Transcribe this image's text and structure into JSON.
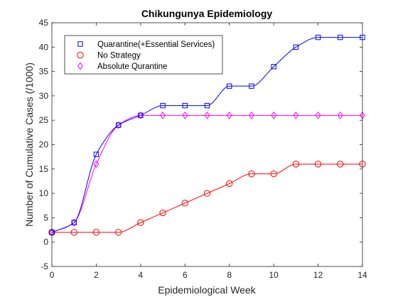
{
  "chart_data": {
    "type": "line",
    "title": "Chikungunya Epidemiology",
    "xlabel": "Epidemiological Week",
    "ylabel": "Number of Cumulative Cases (/1000)",
    "xlim": [
      0,
      14
    ],
    "ylim": [
      -5,
      45
    ],
    "xticks": [
      0,
      2,
      4,
      6,
      8,
      10,
      12,
      14
    ],
    "yticks": [
      -5,
      0,
      5,
      10,
      15,
      20,
      25,
      30,
      35,
      40,
      45
    ],
    "grid": false,
    "legend_position": "top-left",
    "x": [
      0,
      1,
      2,
      3,
      4,
      5,
      6,
      7,
      8,
      9,
      10,
      11,
      12,
      13,
      14
    ],
    "series": [
      {
        "name": "Quarantine(+Essential Services)",
        "marker": "square",
        "color": "#0000ff",
        "values": [
          2,
          4,
          18,
          24,
          26,
          28,
          28,
          28,
          32,
          32,
          36,
          40,
          42,
          42,
          42
        ]
      },
      {
        "name": "No Strategy",
        "marker": "circle",
        "color": "#ff0000",
        "values": [
          2,
          2,
          2,
          2,
          4,
          6,
          8,
          10,
          12,
          14,
          14,
          16,
          16,
          16,
          16
        ]
      },
      {
        "name": "Absolute Qurantine",
        "marker": "diamond",
        "color": "#ff00ff",
        "values": [
          2,
          4,
          16,
          24,
          26,
          26,
          26,
          26,
          26,
          26,
          26,
          26,
          26,
          26,
          26
        ]
      }
    ]
  }
}
